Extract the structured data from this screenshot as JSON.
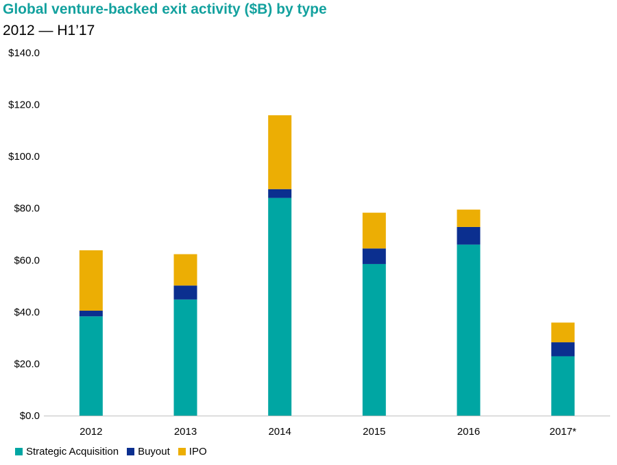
{
  "chart_data": {
    "type": "bar",
    "stacked": true,
    "title": "Global venture-backed exit activity ($B) by type",
    "subtitle": "2012 — H1’17",
    "categories": [
      "2012",
      "2013",
      "2014",
      "2015",
      "2016",
      "2017*"
    ],
    "series": [
      {
        "name": "Strategic Acquisition",
        "color": "#00a6a3",
        "values": [
          38.3,
          44.8,
          84.0,
          58.5,
          66.0,
          22.9
        ]
      },
      {
        "name": "Buyout",
        "color": "#0b2f8f",
        "values": [
          2.2,
          5.4,
          3.4,
          6.0,
          6.8,
          5.4
        ]
      },
      {
        "name": "IPO",
        "color": "#ecae04",
        "values": [
          23.3,
          12.1,
          28.5,
          13.8,
          6.7,
          7.6
        ]
      }
    ],
    "ylim": [
      0,
      140
    ],
    "yticks": [
      "$0.0",
      "$20.0",
      "$40.0",
      "$60.0",
      "$80.0",
      "$100.0",
      "$120.0",
      "$140.0"
    ],
    "ytick_values": [
      0,
      20,
      40,
      60,
      80,
      100,
      120,
      140
    ],
    "grid": false,
    "legend_position": "bottom-left"
  }
}
